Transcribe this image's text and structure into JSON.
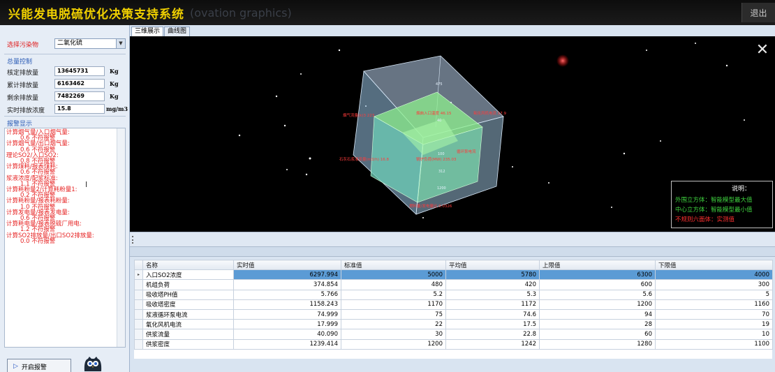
{
  "header": {
    "title": "兴能发电脱硫优化决策支持系统",
    "subtitle": "(ovation graphics)",
    "exit_label": "退出"
  },
  "left": {
    "pollutant_label": "选择污染物",
    "pollutant_value": "二氧化硫",
    "total_label": "总量控制",
    "fields": [
      {
        "label": "核定排放量",
        "value": "13645731",
        "unit": "Kg"
      },
      {
        "label": "累计排放量",
        "value": "6163462",
        "unit": "Kg"
      },
      {
        "label": "剩余排放量",
        "value": "7482269",
        "unit": "Kg"
      },
      {
        "label": "实时排放浓度",
        "value": "15.8",
        "unit": "mg/m3"
      }
    ],
    "alarm_label": "报警显示",
    "alarm_lines": [
      {
        "text": "计算烟气量/入口烟气量:",
        "indent": false
      },
      {
        "text": "0.6 不符报警",
        "indent": true
      },
      {
        "text": "计算烟气量/出口烟气量:",
        "indent": false
      },
      {
        "text": "0.6 不符报警",
        "indent": true
      },
      {
        "text": "理论SO2/入口SO2:",
        "indent": false
      },
      {
        "text": "0.8 不符报警",
        "indent": true
      },
      {
        "text": "计算煤耗/报表煤耗:",
        "indent": false
      },
      {
        "text": "0.6 不符报警",
        "indent": true
      },
      {
        "text": "浆液浓度/配浆标准:",
        "indent": false
      },
      {
        "text": "1.1 不符报警",
        "indent": true
      },
      {
        "text": "计算耗粉量2/计算耗粉量1:",
        "indent": false
      },
      {
        "text": "0.2 不符报警",
        "indent": true
      },
      {
        "text": "计算耗粉量/报表耗粉量:",
        "indent": false
      },
      {
        "text": "1.0  不符报警",
        "indent": true
      },
      {
        "text": "计算发电量/报表发电量:",
        "indent": false
      },
      {
        "text": "0.6 不符报警",
        "indent": true
      },
      {
        "text": "计算耗电量/报表脱硫厂用电:",
        "indent": false
      },
      {
        "text": "1.2 不符报警",
        "indent": true
      },
      {
        "text": "计算SO2排放量/出口SO2排放量:",
        "indent": false
      },
      {
        "text": "0.0 不符报警",
        "indent": true
      }
    ],
    "start_alarm_label": "开启报警"
  },
  "tabs": [
    {
      "label": "三维展示",
      "active": true
    },
    {
      "label": "曲线图",
      "active": false
    }
  ],
  "view3d": {
    "labels": [
      "烟气流量(k)3 223",
      "烟囱入口温度 46.15",
      "氧化风机电流 17.9",
      "循环泵电流",
      "石灰石浆液流量(m3/h) 16.8",
      "锅炉负荷(MW) 235.03",
      "燃料量/发电量比 0.0326",
      "40",
      "100",
      "312",
      "1200",
      "475"
    ],
    "legend_title": "说明：",
    "legend_items": [
      {
        "text": "外围立方体：智能模型最大值",
        "color": "#3fd33f"
      },
      {
        "text": "中心立方体：智能模型最小值",
        "color": "#3fd33f"
      },
      {
        "text": "不规则六面体：实测值",
        "color": "#ff3030"
      }
    ]
  },
  "grid": {
    "columns": [
      "名称",
      "实时值",
      "标准值",
      "平均值",
      "上限值",
      "下限值"
    ],
    "rows": [
      [
        "入口SO2浓度",
        "6297.994",
        "5000",
        "5780",
        "6300",
        "4000"
      ],
      [
        "机组负荷",
        "374.854",
        "480",
        "420",
        "600",
        "300"
      ],
      [
        "吸收塔PH值",
        "5.766",
        "5.2",
        "5.3",
        "5.6",
        "5"
      ],
      [
        "吸收塔密度",
        "1158.243",
        "1170",
        "1172",
        "1200",
        "1160"
      ],
      [
        "浆液循环泵电流",
        "74.999",
        "75",
        "74.6",
        "94",
        "70"
      ],
      [
        "氧化风机电流",
        "17.999",
        "22",
        "17.5",
        "28",
        "19"
      ],
      [
        "供浆流量",
        "40.090",
        "30",
        "22.8",
        "60",
        "10"
      ],
      [
        "供浆密度",
        "1239.414",
        "1200",
        "1242",
        "1280",
        "1100"
      ]
    ],
    "selected_row": 0
  }
}
